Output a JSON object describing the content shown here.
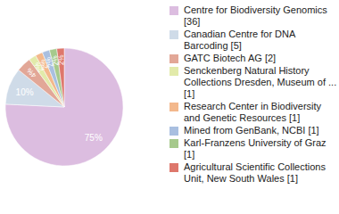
{
  "chart_data": {
    "type": "pie",
    "categories": [
      "Centre for Biodiversity Genomics [36]",
      "Canadian Centre for DNA Barcoding [5]",
      "GATC Biotech AG [2]",
      "Senckenberg Natural History Collections Dresden, Museum of ... [1]",
      "Research Center in Biodiversity and Genetic Resources [1]",
      "Mined from GenBank, NCBI [1]",
      "Karl-Franzens University of Graz [1]",
      "Agricultural Scientific Collections Unit, New South Wales [1]"
    ],
    "values": [
      75,
      10,
      4,
      2,
      2,
      2,
      2,
      2
    ],
    "value_labels": [
      "75%",
      "10%",
      "4%",
      "2%",
      "2%",
      "2%",
      "2%",
      "2%"
    ],
    "colors": [
      "#dcbde0",
      "#cfdbe8",
      "#e2a797",
      "#e2eaaa",
      "#f3b88c",
      "#a9bfe0",
      "#a6c98c",
      "#de776c"
    ],
    "data_labels": true,
    "legend": "right"
  }
}
